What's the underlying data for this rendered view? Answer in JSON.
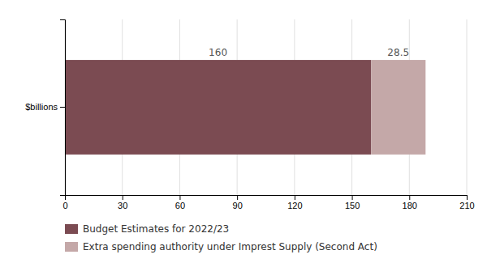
{
  "chart_data": {
    "type": "bar",
    "orientation": "horizontal",
    "stacked": true,
    "categories": [
      "$billions"
    ],
    "series": [
      {
        "name": "Budget Estimates for 2022/23",
        "color": "#7B4B52",
        "values": [
          160
        ]
      },
      {
        "name": "Extra spending authority under Imprest Supply (Second Act)",
        "color": "#C4A8A8",
        "values": [
          28.5
        ]
      }
    ],
    "xlim": [
      0,
      210
    ],
    "xticks": [
      0,
      30,
      60,
      90,
      120,
      150,
      180,
      210
    ],
    "grid": true,
    "legend": "bottom",
    "data_labels": true
  }
}
